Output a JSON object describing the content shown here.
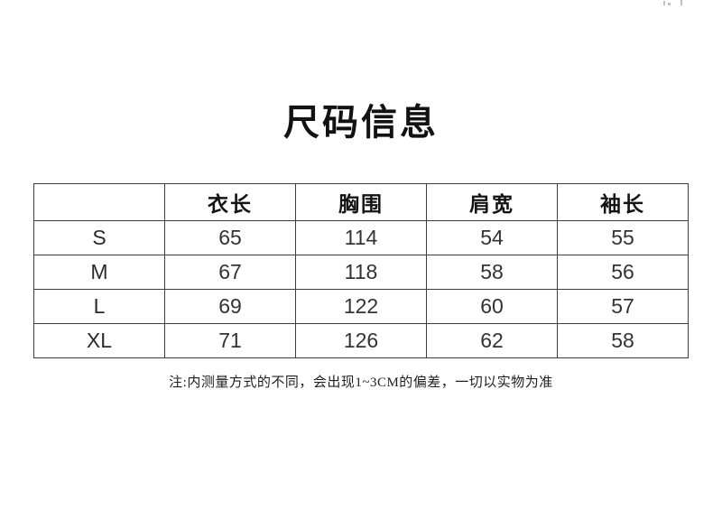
{
  "page": {
    "title": "尺码信息",
    "note": "注:内测量方式的不同，会出现1~3CM的偏差，一切以实物为准"
  },
  "size_table": {
    "columns": [
      "",
      "衣长",
      "胸围",
      "肩宽",
      "袖长"
    ],
    "rows": [
      {
        "size": "S",
        "values": [
          "65",
          "114",
          "54",
          "55"
        ]
      },
      {
        "size": "M",
        "values": [
          "67",
          "118",
          "58",
          "56"
        ]
      },
      {
        "size": "L",
        "values": [
          "69",
          "122",
          "60",
          "57"
        ]
      },
      {
        "size": "XL",
        "values": [
          "71",
          "126",
          "62",
          "58"
        ]
      }
    ]
  },
  "colors": {
    "background": "#ffffff",
    "border": "#3c3c3c",
    "title_text": "#121212",
    "body_text": "#333333"
  }
}
